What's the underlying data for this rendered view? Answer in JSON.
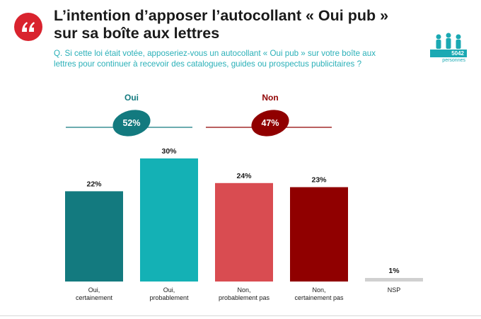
{
  "title": "L’intention d’apposer l’autocollant « Oui pub » sur sa boîte aux lettres",
  "title_line1": "L’intention d’apposer l’autocollant « Oui pub »",
  "title_line2": "sur sa boîte aux lettres",
  "question": "Q. Si cette loi était votée, apposeriez-vous un autocollant « Oui pub » sur votre boîte aux lettres pour continuer à recevoir des catalogues, guides ou prospectus publicitaires ?",
  "question_line1": "Q. Si cette loi était votée, apposeriez-vous un autocollant « Oui pub » sur votre boîte aux",
  "question_line2": "lettres pour continuer à recevoir des catalogues, guides ou prospectus publicitaires ?",
  "sample": {
    "count": "5042",
    "label": "personnes"
  },
  "colors": {
    "quote_badge": "#d9232e",
    "teal_dark": "#137a7f",
    "teal_light": "#14b1b5",
    "red_light": "#d94c51",
    "red_dark": "#900000",
    "grey": "#d0d0d0",
    "oui_header": "#137a7f",
    "non_header": "#8b0000"
  },
  "chart_data": {
    "type": "bar",
    "categories": [
      "Oui,\ncertainement",
      "Oui,\nprobablement",
      "Non,\nprobablement pas",
      "Non,\ncertainement pas",
      "NSP"
    ],
    "values": [
      22,
      30,
      24,
      23,
      1
    ],
    "value_labels": [
      "22%",
      "30%",
      "24%",
      "23%",
      "1%"
    ],
    "colors": [
      "#137a7f",
      "#14b1b5",
      "#d94c51",
      "#900000",
      "#d0d0d0"
    ],
    "groups": [
      {
        "label": "Oui",
        "total": "52%",
        "color": "#137a7f"
      },
      {
        "label": "Non",
        "total": "47%",
        "color": "#900000"
      }
    ],
    "title": "",
    "xlabel": "",
    "ylabel": "",
    "ylim": [
      0,
      30
    ],
    "grid": false
  }
}
